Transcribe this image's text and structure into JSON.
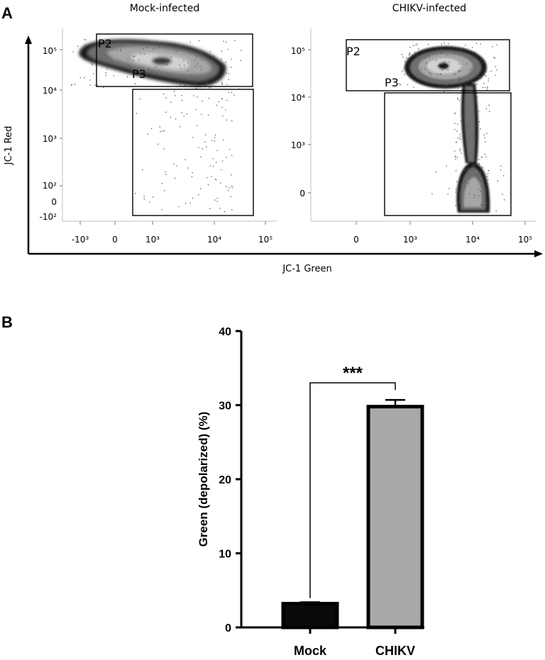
{
  "panel_a": {
    "letter": "A",
    "x_axis_title": "JC-1 Green",
    "y_axis_title": "JC-1 Red",
    "plots": [
      {
        "title": "Mock-infected",
        "gates": [
          "P2",
          "P3"
        ],
        "x_ticks": [
          "-10³",
          "0",
          "10³",
          "10⁴",
          "10⁵"
        ],
        "y_ticks": [
          "10⁵",
          "10⁴",
          "10³",
          "10²",
          "0",
          "-10²"
        ]
      },
      {
        "title": "CHIKV-infected",
        "gates": [
          "P2",
          "P3"
        ],
        "x_ticks": [
          "0",
          "10³",
          "10⁴",
          "10⁵"
        ],
        "y_ticks": [
          "10⁵",
          "10⁴",
          "10³",
          "0"
        ]
      }
    ]
  },
  "chart_data": {
    "type": "bar",
    "panel_letter": "B",
    "categories": [
      "Mock",
      "CHIKV"
    ],
    "values": [
      3.2,
      29.8
    ],
    "errors": [
      0.2,
      0.9
    ],
    "ylabel": "Green (depolarized) (%)",
    "ylim": [
      0,
      40
    ],
    "yticks": [
      "0",
      "10",
      "20",
      "30",
      "40"
    ],
    "significance": "***",
    "bar_colors": [
      "#0a0a0a",
      "#a9a9a9"
    ],
    "grid": false
  }
}
